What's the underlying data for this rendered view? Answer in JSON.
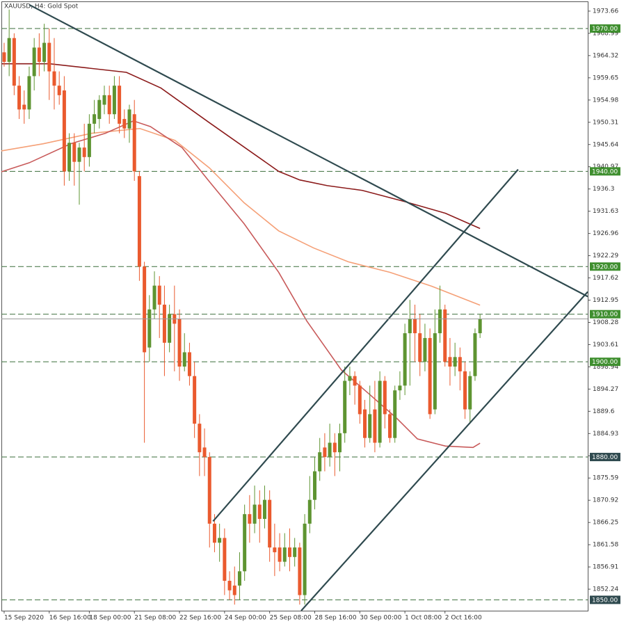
{
  "chart_data": {
    "type": "candlestick",
    "title": "XAUUSD, H4:  Gold Spot",
    "categories": [
      "15 Sep 2020",
      null,
      null,
      null,
      null,
      null,
      null,
      null,
      null,
      "16 Sep 16:00",
      null,
      null,
      null,
      null,
      null,
      null,
      null,
      "18 Sep 00:00",
      null,
      null,
      null,
      null,
      null,
      null,
      null,
      null,
      "21 Sep 08:00",
      null,
      null,
      null,
      null,
      null,
      null,
      null,
      null,
      "22 Sep 16:00",
      null,
      null,
      null,
      null,
      null,
      null,
      null,
      null,
      "24 Sep 00:00",
      null,
      null,
      null,
      null,
      null,
      null,
      null,
      null,
      "25 Sep 08:00",
      null,
      null,
      null,
      null,
      null,
      null,
      null,
      null,
      "28 Sep 16:00",
      null,
      null,
      null,
      null,
      null,
      null,
      null,
      null,
      "30 Sep 00:00",
      null,
      null,
      null,
      null,
      null,
      null,
      null,
      null,
      "1 Oct 08:00",
      null,
      null,
      null,
      null,
      null,
      null,
      null,
      "2 Oct 16:00",
      null,
      null,
      null,
      null,
      null,
      null,
      null
    ],
    "open": [
      1965,
      1963,
      1968,
      1958,
      1954,
      1953,
      1960,
      1966,
      1963,
      1967,
      1961,
      1958,
      1957,
      1940,
      1946,
      1942,
      1945,
      1943,
      1950,
      1951,
      1954,
      1956,
      1952,
      1958,
      1951,
      1949,
      1952,
      1939,
      1920,
      1903,
      1911,
      1916,
      1912,
      1904,
      1910,
      1909,
      1899,
      1902,
      1897,
      1887,
      1882,
      1880,
      1866,
      1862,
      1863,
      1854,
      1853,
      1853,
      1856,
      1868,
      1866,
      1870,
      1867,
      1871,
      1861,
      1861,
      1858,
      1861,
      1859,
      1861,
      1851,
      1866,
      1871,
      1877,
      1882,
      1880,
      1883,
      1881,
      1885,
      1896,
      1897,
      1895,
      1890,
      1884,
      1890,
      1883,
      1896,
      1889,
      1884,
      1894,
      1895,
      1906,
      1909,
      1906,
      1900,
      1905,
      1890,
      1906,
      1911,
      1901,
      1899,
      1901,
      1898,
      1890,
      1897,
      1906
    ],
    "high": [
      1967,
      1974,
      1969,
      1960,
      1957,
      1962,
      1968,
      1969,
      1971,
      1970,
      1968,
      1961,
      1960,
      1948,
      1948,
      1946,
      1950,
      1952,
      1955,
      1956,
      1958,
      1958,
      1960,
      1960,
      1953,
      1954,
      1955,
      1940,
      1921,
      1914,
      1919,
      1918,
      1916,
      1912,
      1916,
      1911,
      1906,
      1904,
      1900,
      1889,
      1886,
      1881,
      1868,
      1866,
      1865,
      1856,
      1857,
      1860,
      1870,
      1872,
      1874,
      1873,
      1874,
      1873,
      1866,
      1864,
      1864,
      1865,
      1863,
      1862,
      1868,
      1876,
      1880,
      1884,
      1885,
      1887,
      1885,
      1887,
      1899,
      1899,
      1898,
      1896,
      1892,
      1895,
      1896,
      1898,
      1897,
      1890,
      1895,
      1898,
      1908,
      1913,
      1912,
      1910,
      1908,
      1907,
      1911,
      1916,
      1912,
      1905,
      1904,
      1903,
      1900,
      1898,
      1907,
      1910
    ],
    "low": [
      1962,
      1960,
      1956,
      1951,
      1950,
      1951,
      1957,
      1960,
      1961,
      1955,
      1953,
      1954,
      1937,
      1938,
      1937,
      1933,
      1940,
      1941,
      1948,
      1949,
      1952,
      1950,
      1951,
      1948,
      1947,
      1946,
      1938,
      1917,
      1883,
      1900,
      1909,
      1905,
      1897,
      1902,
      1898,
      1896,
      1898,
      1895,
      1884,
      1876,
      1876,
      1861,
      1860,
      1858,
      1851,
      1850,
      1849,
      1850,
      1854,
      1862,
      1864,
      1862,
      1865,
      1858,
      1855,
      1856,
      1857,
      1856,
      1857,
      1849,
      1849,
      1864,
      1869,
      1875,
      1877,
      1878,
      1876,
      1877,
      1883,
      1893,
      1891,
      1887,
      1882,
      1883,
      1881,
      1882,
      1886,
      1883,
      1883,
      1892,
      1893,
      1895,
      1900,
      1897,
      1898,
      1888,
      1889,
      1904,
      1899,
      1895,
      1897,
      1894,
      1888,
      1887,
      1896,
      1905
    ],
    "close": [
      1963,
      1968,
      1958,
      1953,
      1953,
      1960,
      1966,
      1963,
      1967,
      1961,
      1958,
      1956,
      1940,
      1946,
      1942,
      1945,
      1943,
      1950,
      1952,
      1955,
      1956,
      1952,
      1958,
      1950,
      1949,
      1953,
      1940,
      1920,
      1902,
      1911,
      1916,
      1912,
      1904,
      1910,
      1908,
      1899,
      1902,
      1897,
      1887,
      1881,
      1880,
      1866,
      1862,
      1863,
      1854,
      1852,
      1851,
      1856,
      1868,
      1866,
      1870,
      1867,
      1871,
      1861,
      1860,
      1858,
      1861,
      1859,
      1861,
      1851,
      1866,
      1871,
      1877,
      1881,
      1880,
      1883,
      1881,
      1885,
      1896,
      1897,
      1895,
      1889,
      1884,
      1889,
      1883,
      1896,
      1889,
      1884,
      1894,
      1895,
      1906,
      1909,
      1906,
      1900,
      1905,
      1889,
      1906,
      1911,
      1900,
      1899,
      1901,
      1898,
      1890,
      1897,
      1906,
      1909
    ],
    "up_color": "#5e9431",
    "down_color": "#ea5a2e",
    "xlim": [
      -0.55,
      116.5
    ],
    "ylim": [
      1847.72,
      1975.7
    ],
    "yticks": [
      1973.66,
      1968.99,
      1964.32,
      1959.65,
      1954.98,
      1950.31,
      1945.64,
      1940.97,
      1936.3,
      1931.63,
      1926.96,
      1922.29,
      1917.62,
      1912.95,
      1908.28,
      1903.61,
      1898.94,
      1894.27,
      1889.6,
      1884.93,
      1880.26,
      1875.59,
      1870.92,
      1866.25,
      1861.58,
      1856.91,
      1852.24
    ],
    "overlays": [
      {
        "color": "#8b1a1a",
        "x": [
          -0.55,
          9.1,
          24.4,
          31.3,
          41,
          54.8,
          59,
          64.5,
          71.5,
          79.8,
          88.1,
          95
        ],
        "values": [
          1962.6,
          1962.6,
          1960.8,
          1957.5,
          1950.2,
          1940,
          1938.2,
          1937,
          1936,
          1933.7,
          1931.2,
          1928
        ]
      },
      {
        "color": "#f5a077",
        "x": [
          -0.55,
          7.8,
          17.5,
          27.1,
          34.1,
          41,
          47.9,
          54.8,
          61.8,
          68.7,
          77,
          85.3,
          95
        ],
        "values": [
          1944.3,
          1945.8,
          1948,
          1949,
          1946.5,
          1940.7,
          1933.4,
          1927.5,
          1923.9,
          1921,
          1918.8,
          1915.9,
          1911.9
        ]
      },
      {
        "color": "#c85a5a",
        "x": [
          -0.55,
          5,
          13.3,
          20.2,
          25.8,
          29.2,
          35.5,
          41,
          47.9,
          54.8,
          60.4,
          67.3,
          72.9,
          78.4,
          82.5,
          88.1,
          93.6,
          95
        ],
        "values": [
          1939.9,
          1941.8,
          1945.8,
          1948,
          1950.6,
          1949.4,
          1945,
          1937.8,
          1929,
          1918.8,
          1908.6,
          1898.3,
          1893.2,
          1888.1,
          1883.8,
          1882.3,
          1882,
          1882.9
        ]
      }
    ],
    "trendlines": [
      {
        "color": "#2f4a4f",
        "x": [
          5,
          116.5
        ],
        "values": [
          1975,
          1913.7
        ]
      },
      {
        "color": "#2f4a4f",
        "x": [
          41.7,
          102.6
        ],
        "values": [
          1866.5,
          1940.4
        ]
      },
      {
        "color": "#2f4a4f",
        "x": [
          59.3,
          116.5
        ],
        "values": [
          1847.72,
          1914.7
        ]
      }
    ],
    "levels": [
      {
        "value": 1970,
        "label": "1970.00",
        "color": "#3f8f2f"
      },
      {
        "value": 1940,
        "label": "1940.00",
        "color": "#3f8f2f"
      },
      {
        "value": 1920,
        "label": "1920.00",
        "color": "#3f8f2f"
      },
      {
        "value": 1910,
        "label": "1910.00",
        "color": "#3f8f2f"
      },
      {
        "value": 1900,
        "label": "1900.00",
        "color": "#3f8f2f"
      },
      {
        "value": 1880,
        "label": "1880.00",
        "color": "#2f4a4f"
      },
      {
        "value": 1850,
        "label": "1850.00",
        "color": "#2f4a4f"
      }
    ]
  }
}
